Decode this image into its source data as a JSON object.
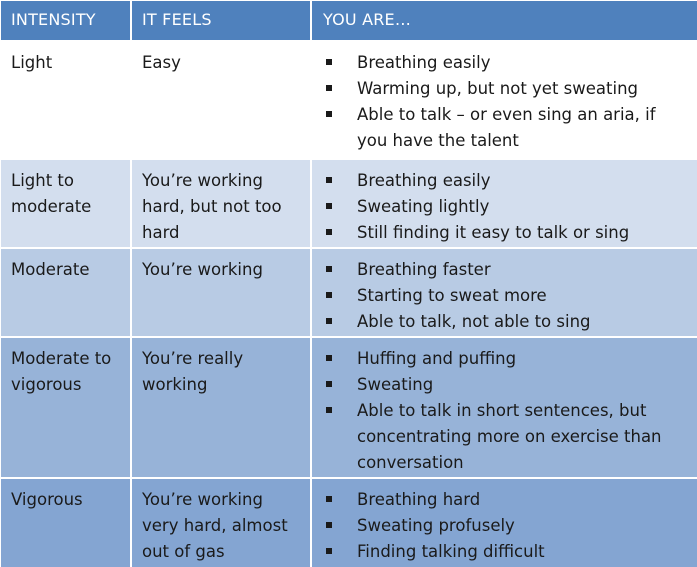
{
  "headers": [
    "INTENSITY",
    "IT FEELS",
    "YOU ARE…"
  ],
  "rows": [
    {
      "intensity": "Light",
      "feels": "Easy",
      "you_are": [
        "Breathing easily",
        "Warming up, but not yet sweating",
        "Able to talk – or even sing an aria, if you have the talent"
      ]
    },
    {
      "intensity": "Light to moderate",
      "feels": "You’re working hard, but not too hard",
      "you_are": [
        "Breathing easily",
        "Sweating lightly",
        "Still finding it easy to talk or sing"
      ]
    },
    {
      "intensity": "Moderate",
      "feels": "You’re working",
      "you_are": [
        "Breathing faster",
        "Starting to sweat more",
        "Able to talk, not able to sing"
      ]
    },
    {
      "intensity": "Moderate to vigorous",
      "feels": "You’re really working",
      "you_are": [
        "Huffing and puffing",
        "Sweating",
        "Able to talk in short sentences, but concentrating more on exercise than conversation"
      ]
    },
    {
      "intensity": "Vigorous",
      "feels": "You’re working very hard, almost out of gas",
      "you_are": [
        "Breathing hard",
        "Sweating profusely",
        "Finding talking difficult"
      ]
    }
  ],
  "colors": {
    "header": "#4f81bd",
    "row1": "#ffffff",
    "row2": "#d3deee",
    "row3": "#b8cbe4",
    "row4": "#97b3d8",
    "row5": "#84a5d2"
  }
}
